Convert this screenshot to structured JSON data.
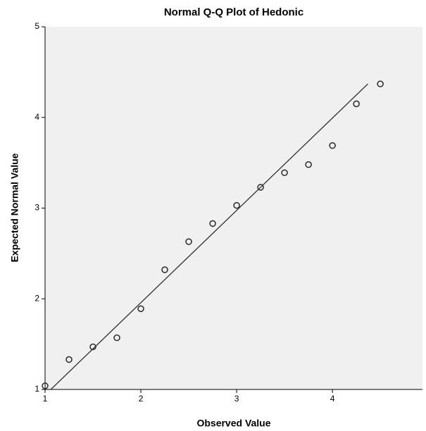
{
  "chart_data": {
    "type": "scatter",
    "title": "Normal Q-Q Plot of Hedonic",
    "x_label": "Observed Value",
    "y_label": "Expected Normal Value",
    "x": [
      1.0,
      1.25,
      1.5,
      1.75,
      2.0,
      2.25,
      2.5,
      2.75,
      3.0,
      3.25,
      3.5,
      3.75,
      4.0,
      4.25,
      4.5
    ],
    "values": [
      1.04,
      1.33,
      1.47,
      1.57,
      1.89,
      2.32,
      2.63,
      2.83,
      3.03,
      3.23,
      3.39,
      3.48,
      3.69,
      4.15,
      4.37
    ],
    "color": "#333333",
    "reference_line": {
      "x": [
        1.06,
        4.37
      ],
      "y": [
        1.0,
        4.37
      ]
    },
    "xlim": [
      1,
      4.94
    ],
    "ylim": [
      1,
      5
    ],
    "xticks": [
      1,
      2,
      3,
      4
    ],
    "yticks": [
      1,
      2,
      3,
      4,
      5
    ]
  }
}
